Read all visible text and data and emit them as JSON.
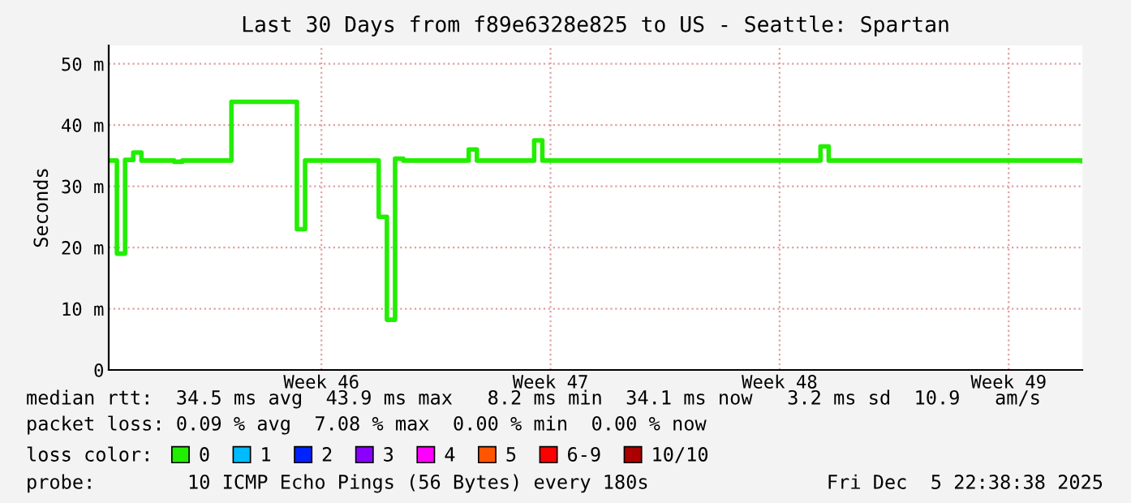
{
  "chart_data": {
    "type": "step",
    "title": "Last 30 Days from f89e6328e825 to US - Seattle: Spartan",
    "ylabel": "Seconds",
    "legend_title": "loss color:",
    "legend": "bottom",
    "grid": true,
    "categories": [
      null,
      null,
      null,
      null,
      null,
      null,
      null,
      null,
      null,
      null,
      null,
      null,
      null,
      null,
      null,
      null,
      null,
      null,
      null,
      null,
      null,
      null,
      null,
      null,
      null,
      null,
      "Week 46",
      null,
      null,
      null,
      null,
      null,
      null,
      null,
      null,
      null,
      null,
      null,
      null,
      null,
      null,
      null,
      null,
      null,
      null,
      null,
      null,
      null,
      null,
      null,
      null,
      null,
      null,
      null,
      "Week 47",
      null,
      null,
      null,
      null,
      null,
      null,
      null,
      null,
      null,
      null,
      null,
      null,
      null,
      null,
      null,
      null,
      null,
      null,
      null,
      null,
      null,
      null,
      null,
      null,
      null,
      null,
      null,
      "Week 48",
      null,
      null,
      null,
      null,
      null,
      null,
      null,
      null,
      null,
      null,
      null,
      null,
      null,
      null,
      null,
      null,
      null,
      null,
      null,
      null,
      null,
      null,
      null,
      null,
      null,
      null,
      null,
      "Week 49",
      null,
      null,
      null,
      null,
      null,
      null,
      null,
      null,
      null
    ],
    "ylim": [
      0,
      53
    ],
    "yticks": [
      0,
      {
        "value": 10,
        "label": "10 m"
      },
      {
        "value": 20,
        "label": "20 m"
      },
      {
        "value": 30,
        "label": "30 m"
      },
      {
        "value": 40,
        "label": "40 m"
      },
      {
        "value": 50,
        "label": "50 m"
      }
    ],
    "series": [
      {
        "name": "0",
        "color": "#22ee00",
        "values": [
          34.2,
          19,
          34.3,
          35.5,
          34.2,
          34.2,
          34.2,
          34.2,
          34.0,
          34.2,
          34.2,
          34.2,
          34.2,
          34.2,
          34.2,
          43.8,
          43.8,
          43.8,
          43.8,
          43.8,
          43.8,
          43.8,
          43.8,
          23,
          34.2,
          34.2,
          34.2,
          34.2,
          34.2,
          34.2,
          34.2,
          34.2,
          34.2,
          25,
          8.2,
          34.5,
          34.2,
          34.2,
          34.2,
          34.2,
          34.2,
          34.2,
          34.2,
          34.2,
          36,
          34.2,
          34.2,
          34.2,
          34.2,
          34.2,
          34.2,
          34.2,
          37.5,
          34.2,
          34.2,
          34.2,
          34.2,
          34.2,
          34.2,
          34.2,
          34.2,
          34.2,
          34.2,
          34.2,
          34.2,
          34.2,
          34.2,
          34.2,
          34.2,
          34.2,
          34.2,
          34.2,
          34.2,
          34.2,
          34.2,
          34.2,
          34.2,
          34.2,
          34.2,
          34.2,
          34.2,
          34.2,
          34.2,
          34.2,
          34.2,
          34.2,
          34.2,
          36.5,
          34.2,
          34.2,
          34.2,
          34.2,
          34.2,
          34.2,
          34.2,
          34.2,
          34.2,
          34.2,
          34.2,
          34.2,
          34.2,
          34.2,
          34.2,
          34.2,
          34.2,
          34.2,
          34.2,
          34.2,
          34.2,
          34.2,
          34.2,
          34.2,
          34.2,
          34.2,
          34.2,
          34.2,
          34.2,
          34.2,
          34.2,
          34.1
        ]
      },
      {
        "name": "1",
        "color": "#00bbff",
        "values": [
          null,
          null,
          null,
          null,
          null,
          null,
          null,
          null,
          null,
          null,
          null,
          null,
          null,
          null,
          null,
          null,
          null,
          null,
          null,
          null,
          null,
          null,
          null,
          null,
          null,
          null,
          null,
          null,
          null,
          null,
          null,
          null,
          null,
          null,
          null,
          null,
          null,
          null,
          null,
          null,
          null,
          null,
          null,
          null,
          null,
          null,
          null,
          null,
          null,
          null,
          null,
          null,
          null,
          null,
          null,
          null,
          null,
          null,
          null,
          null,
          null,
          null,
          null,
          null,
          null,
          null,
          null,
          null,
          null,
          null,
          null,
          null,
          null,
          null,
          null,
          null,
          null,
          null,
          null,
          null,
          null,
          null,
          null,
          null,
          null,
          null,
          null,
          null,
          null,
          null,
          null,
          null,
          null,
          null,
          null,
          null,
          null,
          null,
          null,
          null,
          null,
          null,
          null,
          null,
          null,
          null,
          null,
          null,
          null,
          null,
          null,
          null,
          null,
          null,
          null,
          null,
          null,
          null,
          null,
          null
        ]
      },
      {
        "name": "2",
        "color": "#0022ff",
        "values": [
          null,
          null,
          null,
          null,
          null,
          null,
          null,
          null,
          null,
          null,
          null,
          null,
          null,
          null,
          null,
          null,
          null,
          null,
          null,
          null,
          null,
          null,
          null,
          null,
          null,
          null,
          null,
          null,
          null,
          null,
          null,
          null,
          null,
          null,
          null,
          null,
          null,
          null,
          null,
          null,
          null,
          null,
          null,
          null,
          null,
          null,
          null,
          null,
          null,
          null,
          null,
          null,
          null,
          null,
          null,
          null,
          null,
          null,
          null,
          null,
          null,
          null,
          null,
          null,
          null,
          null,
          null,
          null,
          null,
          null,
          null,
          null,
          null,
          null,
          null,
          null,
          null,
          null,
          null,
          null,
          null,
          null,
          null,
          null,
          null,
          null,
          null,
          null,
          null,
          null,
          null,
          null,
          null,
          null,
          null,
          null,
          null,
          null,
          null,
          null,
          null,
          null,
          null,
          null,
          null,
          null,
          null,
          null,
          null,
          null,
          null,
          null,
          null,
          null,
          null,
          null,
          null,
          null,
          null,
          null
        ]
      },
      {
        "name": "3",
        "color": "#8a00ff",
        "values": [
          null,
          null,
          null,
          null,
          null,
          null,
          null,
          null,
          null,
          null,
          null,
          null,
          null,
          null,
          null,
          null,
          null,
          null,
          null,
          null,
          null,
          null,
          null,
          null,
          null,
          null,
          null,
          null,
          null,
          null,
          null,
          null,
          null,
          null,
          null,
          null,
          null,
          null,
          null,
          null,
          null,
          null,
          null,
          null,
          null,
          null,
          null,
          null,
          null,
          null,
          null,
          null,
          null,
          null,
          null,
          null,
          null,
          null,
          null,
          null,
          null,
          null,
          null,
          null,
          null,
          null,
          null,
          null,
          null,
          null,
          null,
          null,
          null,
          null,
          null,
          null,
          null,
          null,
          null,
          null,
          null,
          null,
          null,
          null,
          null,
          null,
          null,
          null,
          null,
          null,
          null,
          null,
          null,
          null,
          null,
          null,
          null,
          null,
          null,
          null,
          null,
          null,
          null,
          null,
          null,
          null,
          null,
          null,
          null,
          null,
          null,
          null,
          null,
          null,
          null,
          null,
          null,
          null,
          null,
          null
        ]
      },
      {
        "name": "4",
        "color": "#ff00ff",
        "values": [
          null,
          null,
          null,
          null,
          null,
          null,
          null,
          null,
          null,
          null,
          null,
          null,
          null,
          null,
          null,
          null,
          null,
          null,
          null,
          null,
          null,
          null,
          null,
          null,
          null,
          null,
          null,
          null,
          null,
          null,
          null,
          null,
          null,
          null,
          null,
          null,
          null,
          null,
          null,
          null,
          null,
          null,
          null,
          null,
          null,
          null,
          null,
          null,
          null,
          null,
          null,
          null,
          null,
          null,
          null,
          null,
          null,
          null,
          null,
          null,
          null,
          null,
          null,
          null,
          null,
          null,
          null,
          null,
          null,
          null,
          null,
          null,
          null,
          null,
          null,
          null,
          null,
          null,
          null,
          null,
          null,
          null,
          null,
          null,
          null,
          null,
          null,
          null,
          null,
          null,
          null,
          null,
          null,
          null,
          null,
          null,
          null,
          null,
          null,
          null,
          null,
          null,
          null,
          null,
          null,
          null,
          null,
          null,
          null,
          null,
          null,
          null,
          null,
          null,
          null,
          null,
          null,
          null,
          null,
          null
        ]
      },
      {
        "name": "5",
        "color": "#ff5500",
        "values": [
          null,
          null,
          null,
          null,
          null,
          null,
          null,
          null,
          null,
          null,
          null,
          null,
          null,
          null,
          null,
          null,
          null,
          null,
          null,
          null,
          null,
          null,
          null,
          null,
          null,
          null,
          null,
          null,
          null,
          null,
          null,
          null,
          null,
          null,
          null,
          null,
          null,
          null,
          null,
          null,
          null,
          null,
          null,
          null,
          null,
          null,
          null,
          null,
          null,
          null,
          null,
          null,
          null,
          null,
          null,
          null,
          null,
          null,
          null,
          null,
          null,
          null,
          null,
          null,
          null,
          null,
          null,
          null,
          null,
          null,
          null,
          null,
          null,
          null,
          null,
          null,
          null,
          null,
          null,
          null,
          null,
          null,
          null,
          null,
          null,
          null,
          null,
          null,
          null,
          null,
          null,
          null,
          null,
          null,
          null,
          null,
          null,
          null,
          null,
          null,
          null,
          null,
          null,
          null,
          null,
          null,
          null,
          null,
          null,
          null,
          null,
          null,
          null,
          null,
          null,
          null,
          null,
          null,
          null,
          null
        ]
      },
      {
        "name": "6-9",
        "color": "#ff0000",
        "values": [
          null,
          null,
          null,
          null,
          null,
          null,
          null,
          null,
          null,
          null,
          null,
          null,
          null,
          null,
          null,
          null,
          null,
          null,
          null,
          null,
          null,
          null,
          null,
          null,
          null,
          null,
          null,
          null,
          null,
          null,
          null,
          null,
          null,
          null,
          null,
          null,
          null,
          null,
          null,
          null,
          null,
          null,
          null,
          null,
          null,
          null,
          null,
          null,
          null,
          null,
          null,
          null,
          null,
          null,
          null,
          null,
          null,
          null,
          null,
          null,
          null,
          null,
          null,
          null,
          null,
          null,
          null,
          null,
          null,
          null,
          null,
          null,
          null,
          null,
          null,
          null,
          null,
          null,
          null,
          null,
          null,
          null,
          null,
          null,
          null,
          null,
          null,
          null,
          null,
          null,
          null,
          null,
          null,
          null,
          null,
          null,
          null,
          null,
          null,
          null,
          null,
          null,
          null,
          null,
          null,
          null,
          null,
          null,
          null,
          null,
          null,
          null,
          null,
          null,
          null,
          null,
          null,
          null,
          null,
          null
        ]
      },
      {
        "name": "10/10",
        "color": "#aa0000",
        "values": [
          null,
          null,
          null,
          null,
          null,
          null,
          null,
          null,
          null,
          null,
          null,
          null,
          null,
          null,
          null,
          null,
          null,
          null,
          null,
          null,
          null,
          null,
          null,
          null,
          null,
          null,
          null,
          null,
          null,
          null,
          null,
          null,
          null,
          null,
          null,
          null,
          null,
          null,
          null,
          null,
          null,
          null,
          null,
          null,
          null,
          null,
          null,
          null,
          null,
          null,
          null,
          null,
          null,
          null,
          null,
          null,
          null,
          null,
          null,
          null,
          null,
          null,
          null,
          null,
          null,
          null,
          null,
          null,
          null,
          null,
          null,
          null,
          null,
          null,
          null,
          null,
          null,
          null,
          null,
          null,
          null,
          null,
          null,
          null,
          null,
          null,
          null,
          null,
          null,
          null,
          null,
          null,
          null,
          null,
          null,
          null,
          null,
          null,
          null,
          null,
          null,
          null,
          null,
          null,
          null,
          null,
          null,
          null,
          null,
          null,
          null,
          null,
          null,
          null,
          null,
          null,
          null,
          null,
          null,
          null
        ]
      }
    ],
    "annotations": [
      "median rtt:  34.5 ms avg  43.9 ms max   8.2 ms min  34.1 ms now   3.2 ms sd  10.9   am/s",
      "packet loss: 0.09 % avg  7.08 % max  0.00 % min  0.00 % now",
      "probe:        10 ICMP Echo Pings (56 Bytes) every 180s",
      "Fri Dec  5 22:38:38 2025"
    ]
  }
}
